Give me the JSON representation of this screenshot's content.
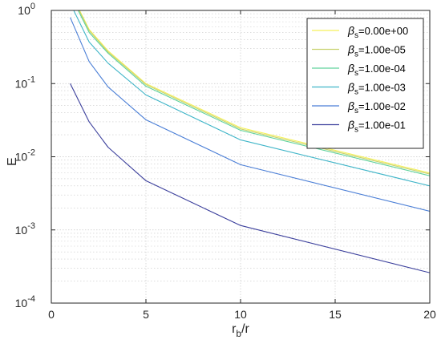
{
  "chart_data": {
    "type": "line",
    "title": "",
    "xlabel": {
      "base": "r",
      "sub": "b",
      "rest": "/r"
    },
    "ylabel": "E",
    "x_scale": "linear",
    "y_scale": "log",
    "xlim": [
      0,
      20
    ],
    "ylim": [
      0.0001,
      1
    ],
    "x_ticks": [
      0,
      5,
      10,
      15,
      20
    ],
    "y_ticks": [
      {
        "value": 0.0001,
        "base": "10",
        "exp": "-4"
      },
      {
        "value": 0.001,
        "base": "10",
        "exp": "-3"
      },
      {
        "value": 0.01,
        "base": "10",
        "exp": "-2"
      },
      {
        "value": 0.1,
        "base": "10",
        "exp": "-1"
      },
      {
        "value": 1,
        "base": "10",
        "exp": "0"
      }
    ],
    "grid": true,
    "minor_grid": true,
    "legend_position": "top-right",
    "legend_symbol": "β",
    "legend_subscript": "s",
    "series": [
      {
        "name": "=0.00e+00",
        "color": "#f5f05a",
        "x": [
          1,
          2,
          3,
          5,
          10,
          20
        ],
        "y": [
          1.8,
          0.55,
          0.28,
          0.1,
          0.025,
          0.006
        ]
      },
      {
        "name": "=1.00e-05",
        "color": "#c8d26e",
        "x": [
          1,
          2,
          3,
          5,
          10,
          20
        ],
        "y": [
          1.75,
          0.53,
          0.27,
          0.097,
          0.024,
          0.0058
        ]
      },
      {
        "name": "=1.00e-04",
        "color": "#5fd29c",
        "x": [
          1,
          2,
          3,
          5,
          10,
          20
        ],
        "y": [
          1.65,
          0.5,
          0.26,
          0.092,
          0.023,
          0.0055
        ]
      },
      {
        "name": "=1.00e-03",
        "color": "#3fb5c8",
        "x": [
          1,
          2,
          3,
          5,
          10,
          20
        ],
        "y": [
          1.25,
          0.37,
          0.19,
          0.07,
          0.017,
          0.004
        ]
      },
      {
        "name": "=1.00e-02",
        "color": "#4a7ed6",
        "x": [
          1,
          2,
          3,
          5,
          10,
          20
        ],
        "y": [
          0.8,
          0.2,
          0.09,
          0.032,
          0.0078,
          0.0018
        ]
      },
      {
        "name": "=1.00e-01",
        "color": "#3b3f9c",
        "x": [
          1,
          2,
          3,
          5,
          10,
          20
        ],
        "y": [
          0.1,
          0.03,
          0.0135,
          0.0047,
          0.00115,
          0.00026
        ]
      }
    ]
  }
}
